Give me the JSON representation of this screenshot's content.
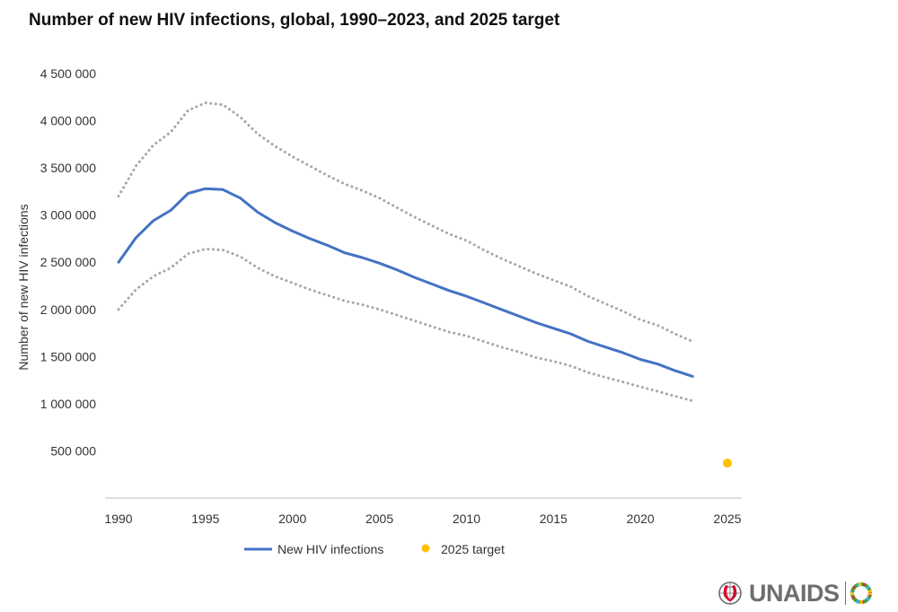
{
  "chart_data": {
    "type": "line",
    "title": "Number of new HIV infections, global, 1990–2023, and 2025 target",
    "ylabel": "Number of new HIV infections",
    "xlabel": "",
    "xlim": [
      1990,
      2025
    ],
    "ylim": [
      0,
      4500000
    ],
    "x_ticks": [
      "1990",
      "1995",
      "2000",
      "2005",
      "2010",
      "2015",
      "2020",
      "2025"
    ],
    "y_ticks": [
      {
        "value": 500000,
        "label": "500 000"
      },
      {
        "value": 1000000,
        "label": "1 000 000"
      },
      {
        "value": 1500000,
        "label": "1 500 000"
      },
      {
        "value": 2000000,
        "label": "2 000 000"
      },
      {
        "value": 2500000,
        "label": "2 500 000"
      },
      {
        "value": 3000000,
        "label": "3 000 000"
      },
      {
        "value": 3500000,
        "label": "3 500 000"
      },
      {
        "value": 4000000,
        "label": "4 000 000"
      },
      {
        "value": 4500000,
        "label": "4 500 000"
      }
    ],
    "grid": false,
    "legend_position": "bottom",
    "x": [
      1990,
      1991,
      1992,
      1993,
      1994,
      1995,
      1996,
      1997,
      1998,
      1999,
      2000,
      2001,
      2002,
      2003,
      2004,
      2005,
      2006,
      2007,
      2008,
      2009,
      2010,
      2011,
      2012,
      2013,
      2014,
      2015,
      2016,
      2017,
      2018,
      2019,
      2020,
      2021,
      2022,
      2023
    ],
    "series": [
      {
        "name": "New HIV infections",
        "color": "#4472c4",
        "style": "solid",
        "values": [
          2500000,
          2760000,
          2940000,
          3050000,
          3230000,
          3280000,
          3270000,
          3180000,
          3030000,
          2920000,
          2830000,
          2750000,
          2680000,
          2600000,
          2550000,
          2490000,
          2420000,
          2340000,
          2270000,
          2200000,
          2140000,
          2070000,
          2000000,
          1930000,
          1860000,
          1800000,
          1740000,
          1660000,
          1600000,
          1540000,
          1470000,
          1420000,
          1350000,
          1290000
        ]
      },
      {
        "name": "",
        "color": "#a6a6a6",
        "style": "dotted",
        "values": [
          3200000,
          3520000,
          3740000,
          3880000,
          4110000,
          4190000,
          4170000,
          4040000,
          3860000,
          3730000,
          3620000,
          3520000,
          3420000,
          3330000,
          3260000,
          3180000,
          3080000,
          2980000,
          2890000,
          2800000,
          2730000,
          2630000,
          2540000,
          2460000,
          2380000,
          2310000,
          2240000,
          2140000,
          2060000,
          1980000,
          1890000,
          1830000,
          1740000,
          1660000
        ]
      },
      {
        "name": "",
        "color": "#a6a6a6",
        "style": "dotted",
        "values": [
          2000000,
          2210000,
          2350000,
          2440000,
          2590000,
          2640000,
          2630000,
          2560000,
          2440000,
          2350000,
          2280000,
          2210000,
          2150000,
          2090000,
          2050000,
          2000000,
          1940000,
          1880000,
          1820000,
          1760000,
          1720000,
          1660000,
          1600000,
          1550000,
          1490000,
          1450000,
          1400000,
          1330000,
          1280000,
          1230000,
          1180000,
          1130000,
          1080000,
          1030000
        ]
      }
    ],
    "target": {
      "name": "2025 target",
      "x": 2025,
      "y": 370000,
      "color": "#ffc000"
    }
  },
  "logo": {
    "text": "UNAIDS"
  }
}
